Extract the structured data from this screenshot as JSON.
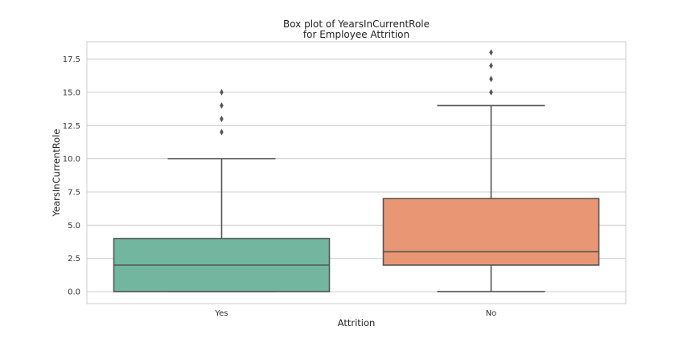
{
  "chart_data": {
    "type": "box",
    "title": "Box plot of YearsInCurrentRole",
    "subtitle": "for Employee Attrition",
    "xlabel": "Attrition",
    "ylabel": "YearsInCurrentRole",
    "ylim": [
      -0.9,
      18.8
    ],
    "yticks": [
      0.0,
      2.5,
      5.0,
      7.5,
      10.0,
      12.5,
      15.0,
      17.5
    ],
    "ytick_labels": [
      "0.0",
      "2.5",
      "5.0",
      "7.5",
      "10.0",
      "12.5",
      "15.0",
      "17.5"
    ],
    "grid": true,
    "categories": [
      "Yes",
      "No"
    ],
    "boxes": [
      {
        "category": "Yes",
        "color": "#72b6a0",
        "whisker_low": 0,
        "q1": 0,
        "median": 2,
        "q3": 4,
        "whisker_high": 10,
        "outliers": [
          12,
          13,
          14,
          15
        ]
      },
      {
        "category": "No",
        "color": "#e99675",
        "whisker_low": 0,
        "q1": 2,
        "median": 3,
        "q3": 7,
        "whisker_high": 14,
        "outliers": [
          15,
          16,
          17,
          18
        ]
      }
    ],
    "colors": {
      "edge": "#555555",
      "grid": "#cccccc",
      "frame": "#cccccc"
    }
  }
}
